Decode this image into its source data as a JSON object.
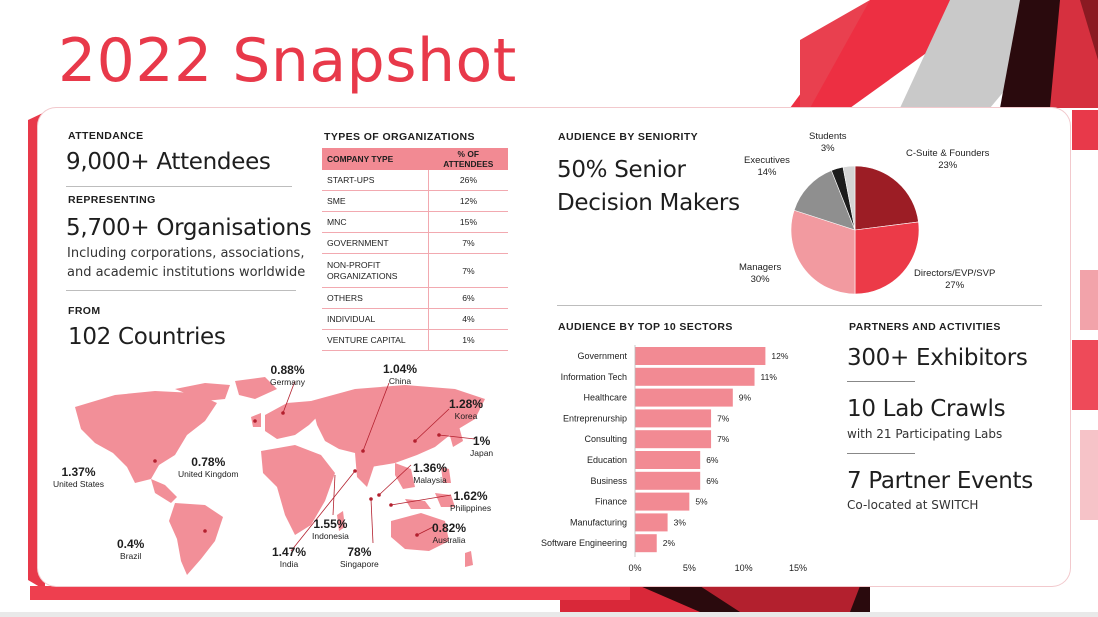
{
  "title": "2022 Snapshot",
  "attendance": {
    "label": "ATTENDANCE",
    "value": "9,000+ Attendees",
    "representing_label": "REPRESENTING",
    "orgs_value": "5,700+ Organisations",
    "orgs_desc_1": "Including corporations, associations,",
    "orgs_desc_2": "and academic institutions worldwide",
    "from_label": "FROM",
    "countries_value": "102 Countries"
  },
  "org_types": {
    "label": "TYPES OF ORGANIZATIONS",
    "col_type": "COMPANY TYPE",
    "col_pct": "% OF ATTENDEES",
    "rows": [
      {
        "type": "START-UPS",
        "pct": "26%"
      },
      {
        "type": "SME",
        "pct": "12%"
      },
      {
        "type": "MNC",
        "pct": "15%"
      },
      {
        "type": "GOVERNMENT",
        "pct": "7%"
      },
      {
        "type": "NON-PROFIT ORGANIZATIONS",
        "pct": "7%"
      },
      {
        "type": "OTHERS",
        "pct": "6%"
      },
      {
        "type": "INDIVIDUAL",
        "pct": "4%"
      },
      {
        "type": "VENTURE CAPITAL",
        "pct": "1%"
      }
    ]
  },
  "map": {
    "countries": [
      {
        "pct": "0.88%",
        "name": "Germany"
      },
      {
        "pct": "1.04%",
        "name": "China"
      },
      {
        "pct": "1.28%",
        "name": "Korea"
      },
      {
        "pct": "1%",
        "name": "Japan"
      },
      {
        "pct": "1.36%",
        "name": "Malaysia"
      },
      {
        "pct": "1.62%",
        "name": "Philippines"
      },
      {
        "pct": "0.82%",
        "name": "Australia"
      },
      {
        "pct": "78%",
        "name": "Singapore"
      },
      {
        "pct": "1.55%",
        "name": "Indonesia"
      },
      {
        "pct": "1.47%",
        "name": "India"
      },
      {
        "pct": "0.78%",
        "name": "United Kingdom"
      },
      {
        "pct": "1.37%",
        "name": "United States"
      },
      {
        "pct": "0.4%",
        "name": "Brazil"
      }
    ]
  },
  "seniority": {
    "label": "AUDIENCE BY SENIORITY",
    "headline_1": "50% Senior",
    "headline_2": "Decision Makers"
  },
  "sectors_label": "AUDIENCE BY TOP 10 SECTORS",
  "partners": {
    "label": "PARTNERS AND ACTIVITIES",
    "exhibitors": "300+ Exhibitors",
    "lab_crawls": "10 Lab Crawls",
    "lab_crawls_sub": "with 21 Participating Labs",
    "events": "7 Partner Events",
    "events_sub": "Co-located at SWITCH"
  },
  "colors": {
    "accent": "#e8394a",
    "bar": "#f28a93",
    "map": "#f28f98"
  },
  "chart_data": [
    {
      "type": "pie",
      "title": "",
      "categories": [
        "C-Suite & Founders",
        "Directors/EVP/SVP",
        "Managers",
        "Executives",
        "Students"
      ],
      "values": [
        23,
        27,
        30,
        14,
        3
      ],
      "labels": [
        "23%",
        "27%",
        "30%",
        "14%",
        "3%"
      ],
      "colors": [
        "#9c1d25",
        "#ec3a48",
        "#f29aa0",
        "#8f8f8f",
        "#1c1c1c"
      ],
      "extra_slice_color": "#d4d4d4"
    },
    {
      "type": "bar",
      "orientation": "horizontal",
      "title": "",
      "categories": [
        "Government",
        "Information Tech",
        "Healthcare",
        "Entreprenurship",
        "Consulting",
        "Education",
        "Business",
        "Finance",
        "Manufacturing",
        "Software Engineering"
      ],
      "values": [
        12,
        11,
        9,
        7,
        7,
        6,
        6,
        5,
        3,
        2
      ],
      "labels": [
        "12%",
        "11%",
        "9%",
        "7%",
        "7%",
        "6%",
        "6%",
        "5%",
        "3%",
        "2%"
      ],
      "xlim": [
        0,
        15
      ],
      "ticks": [
        0,
        5,
        10,
        15
      ],
      "tick_labels": [
        "0%",
        "5%",
        "10%",
        "15%"
      ]
    }
  ]
}
